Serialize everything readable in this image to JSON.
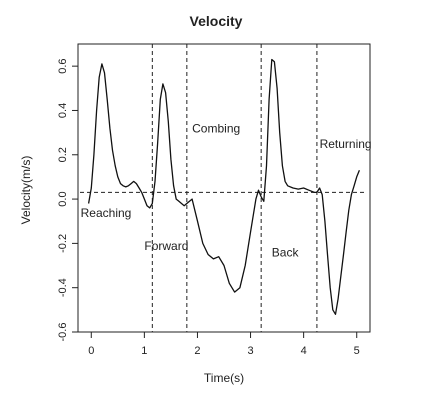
{
  "chart_data": {
    "type": "line",
    "title": "Velocity",
    "xlabel": "Time(s)",
    "ylabel": "Velocity(m/s)",
    "xlim": [
      -0.25,
      5.25
    ],
    "ylim": [
      -0.6,
      0.7
    ],
    "x_ticks": [
      0,
      1,
      2,
      3,
      4,
      5
    ],
    "y_ticks": [
      -0.6,
      -0.4,
      -0.2,
      0.0,
      0.2,
      0.4,
      0.6
    ],
    "x_tick_labels": [
      "0",
      "1",
      "2",
      "3",
      "4",
      "5"
    ],
    "y_tick_labels": [
      "-0.6",
      "-0.4",
      "-0.2",
      "0.0",
      "0.2",
      "0.4",
      "0.6"
    ],
    "grid": false,
    "zero_line": 0.03,
    "phase_boundaries": [
      1.15,
      1.8,
      3.2,
      4.25
    ],
    "annotations": [
      {
        "text": "Reaching",
        "x": -0.2,
        "y": -0.08
      },
      {
        "text": "Forward",
        "x": 1.0,
        "y": -0.23
      },
      {
        "text": "Combing",
        "x": 1.9,
        "y": 0.3
      },
      {
        "text": "Back",
        "x": 3.4,
        "y": -0.26
      },
      {
        "text": "Returning",
        "x": 4.3,
        "y": 0.23
      }
    ],
    "series": [
      {
        "x": [
          -0.05,
          0.0,
          0.05,
          0.1,
          0.15,
          0.2,
          0.25,
          0.3,
          0.35,
          0.4,
          0.45,
          0.5,
          0.55,
          0.6,
          0.65,
          0.7,
          0.75,
          0.8,
          0.85,
          0.9,
          0.95,
          1.0,
          1.05,
          1.1,
          1.15,
          1.2,
          1.25,
          1.3,
          1.35,
          1.4,
          1.45,
          1.5,
          1.55,
          1.6,
          1.65,
          1.7,
          1.75,
          1.8,
          1.85,
          1.9,
          2.0,
          2.1,
          2.2,
          2.3,
          2.4,
          2.5,
          2.6,
          2.7,
          2.8,
          2.9,
          3.0,
          3.1,
          3.15,
          3.2,
          3.25,
          3.3,
          3.35,
          3.4,
          3.45,
          3.5,
          3.55,
          3.6,
          3.65,
          3.7,
          3.8,
          3.9,
          4.0,
          4.1,
          4.2,
          4.25,
          4.3,
          4.35,
          4.4,
          4.45,
          4.5,
          4.55,
          4.6,
          4.65,
          4.7,
          4.75,
          4.8,
          4.85,
          4.9,
          4.95,
          5.0,
          5.05
        ],
        "y": [
          -0.02,
          0.05,
          0.2,
          0.4,
          0.55,
          0.61,
          0.57,
          0.45,
          0.32,
          0.22,
          0.15,
          0.1,
          0.07,
          0.06,
          0.055,
          0.06,
          0.07,
          0.08,
          0.07,
          0.05,
          0.03,
          0.0,
          -0.03,
          -0.04,
          -0.02,
          0.08,
          0.25,
          0.45,
          0.52,
          0.48,
          0.35,
          0.18,
          0.06,
          0.0,
          -0.01,
          -0.02,
          -0.03,
          -0.02,
          -0.01,
          0.0,
          -0.1,
          -0.2,
          -0.25,
          -0.27,
          -0.26,
          -0.3,
          -0.38,
          -0.42,
          -0.4,
          -0.3,
          -0.15,
          0.0,
          0.04,
          0.01,
          -0.01,
          0.15,
          0.45,
          0.63,
          0.62,
          0.5,
          0.3,
          0.15,
          0.08,
          0.06,
          0.05,
          0.045,
          0.05,
          0.04,
          0.03,
          0.03,
          0.05,
          0.02,
          -0.1,
          -0.25,
          -0.4,
          -0.5,
          -0.52,
          -0.45,
          -0.35,
          -0.25,
          -0.15,
          -0.05,
          0.02,
          0.06,
          0.1,
          0.13
        ]
      }
    ]
  }
}
